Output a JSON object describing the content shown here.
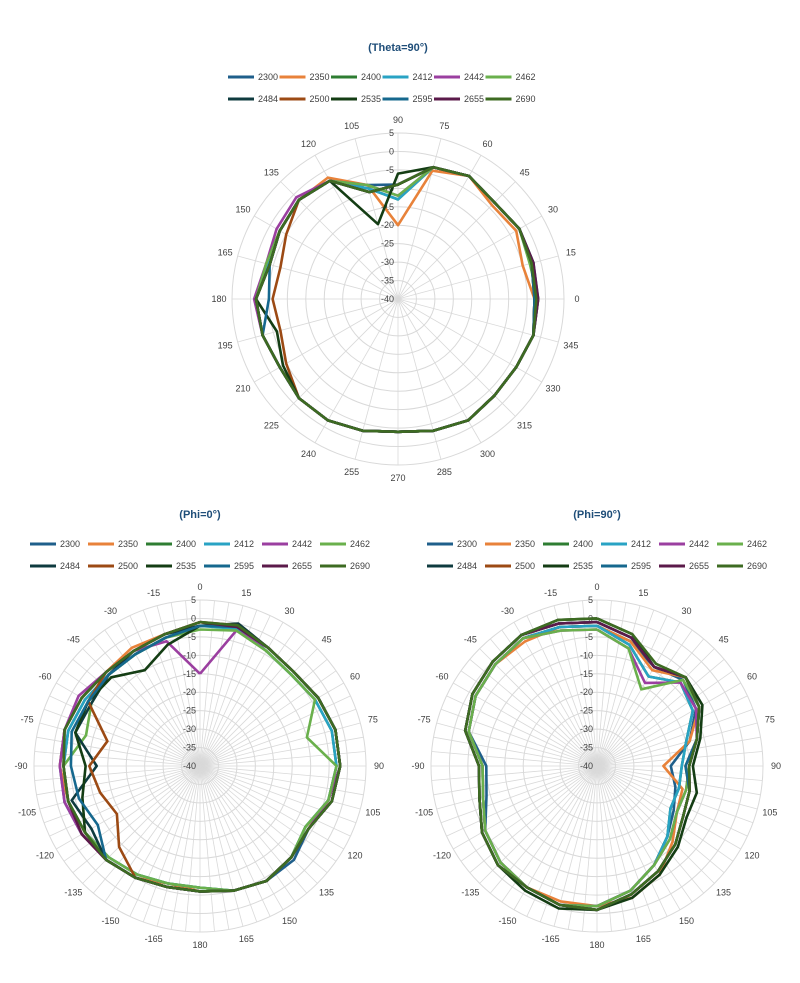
{
  "legend_names": [
    "2300",
    "2350",
    "2400",
    "2412",
    "2442",
    "2462",
    "2484",
    "2500",
    "2535",
    "2595",
    "2655",
    "2690"
  ],
  "legend_colors": [
    "#1f5f8b",
    "#e8823a",
    "#2e7d32",
    "#29a3c4",
    "#9b3fa0",
    "#6ab04c",
    "#0f3b3f",
    "#9c4a14",
    "#143d14",
    "#16688e",
    "#5b1a4a",
    "#3d6b22"
  ],
  "chart_data": [
    {
      "type": "radar",
      "title": "(Theta=90°)",
      "radial_ticks": [
        "5",
        "0",
        "-5",
        "-10",
        "-15",
        "-20",
        "-25",
        "-30",
        "-35",
        "-40"
      ],
      "rlim": [
        -40,
        5
      ],
      "angle_labels": [
        "0",
        "15",
        "30",
        "45",
        "60",
        "75",
        "90",
        "105",
        "120",
        "135",
        "150",
        "165",
        "180",
        "195",
        "210",
        "225",
        "240",
        "255",
        "270",
        "285",
        "300",
        "315",
        "330",
        "345"
      ],
      "series": [
        {
          "name": "2300",
          "values": [
            -2,
            -2.5,
            -2,
            -3,
            -1.5,
            -3,
            -9,
            -8,
            -3,
            -2,
            -3,
            -4,
            -1.5,
            -2,
            -3,
            -2,
            -2,
            -3,
            -4,
            -3,
            -2,
            -3,
            -3,
            -2
          ]
        },
        {
          "name": "2350",
          "values": [
            -3,
            -5,
            -3,
            -4,
            -1.5,
            -4,
            -20,
            -8,
            -2,
            -2,
            -3,
            -3,
            -1.5,
            -2,
            -3,
            -2,
            -2,
            -3,
            -4,
            -3,
            -2,
            -3,
            -3,
            -2
          ]
        },
        {
          "name": "2400",
          "values": [
            -2.5,
            -2.5,
            -2,
            -3,
            -1.5,
            -3,
            -13,
            -9,
            -3,
            -2,
            -3,
            -3.5,
            -1.5,
            -2,
            -3,
            -2,
            -2,
            -3,
            -4,
            -3,
            -2,
            -3,
            -3,
            -2
          ]
        },
        {
          "name": "2412",
          "values": [
            -2,
            -2,
            -2,
            -3,
            -1.5,
            -3,
            -13,
            -9,
            -3,
            -2,
            -3,
            -3.5,
            -1.5,
            -2,
            -3,
            -2,
            -2,
            -3,
            -4,
            -3,
            -2,
            -3,
            -3,
            -2
          ]
        },
        {
          "name": "2442",
          "values": [
            -2.5,
            -2.5,
            -2,
            -3,
            -1.5,
            -3,
            -12,
            -8,
            -3,
            -1,
            -2,
            -3,
            -1,
            -2,
            -3,
            -2,
            -2,
            -3,
            -4,
            -3,
            -2,
            -3,
            -3,
            -2
          ]
        },
        {
          "name": "2462",
          "values": [
            -2,
            -3,
            -2,
            -3,
            -1.5,
            -3,
            -12,
            -8,
            -3,
            -2,
            -3,
            -3,
            -1.5,
            -2,
            -3,
            -2,
            -2,
            -3,
            -4,
            -3,
            -2,
            -3,
            -3,
            -2
          ]
        },
        {
          "name": "2484",
          "values": [
            -3,
            -2,
            -2,
            -3,
            -1.5,
            -3,
            -9,
            -10,
            -3,
            -2,
            -3,
            -4,
            -1.5,
            -2,
            -3,
            -2,
            -2,
            -3,
            -4,
            -3,
            -2,
            -3,
            -3,
            -2
          ]
        },
        {
          "name": "2500",
          "values": [
            -3,
            -2.5,
            -2,
            -3,
            -1.5,
            -3,
            -9,
            -10,
            -3,
            -2,
            -5,
            -7,
            -6,
            -7,
            -5,
            -2,
            -2,
            -3,
            -4,
            -3,
            -2,
            -3,
            -3,
            -2
          ]
        },
        {
          "name": "2535",
          "values": [
            -3,
            -2.5,
            -2,
            -3,
            -1.5,
            -3,
            -6,
            -19,
            -3,
            -2,
            -3,
            -4,
            -1.5,
            -6,
            -4,
            -2,
            -2,
            -3,
            -4,
            -3,
            -2,
            -3,
            -3,
            -2
          ]
        },
        {
          "name": "2595",
          "values": [
            -3,
            -2.5,
            -2,
            -3,
            -1.5,
            -3,
            -9,
            -10,
            -3,
            -2,
            -3,
            -4,
            -5,
            -2,
            -3,
            -2,
            -2,
            -3,
            -4,
            -3,
            -2,
            -3,
            -3,
            -2
          ]
        },
        {
          "name": "2655",
          "values": [
            -2,
            -2,
            -2,
            -3,
            -1.5,
            -3,
            -9,
            -10,
            -3,
            -2,
            -3,
            -4,
            -1.5,
            -2,
            -3,
            -2,
            -2,
            -3,
            -4,
            -3,
            -2,
            -3,
            -3,
            -2
          ]
        },
        {
          "name": "2690",
          "values": [
            -2.5,
            -2.5,
            -2,
            -3,
            -1.5,
            -3,
            -9,
            -10,
            -3,
            -2,
            -3,
            -4,
            -1.5,
            -2,
            -3,
            -2,
            -2,
            -3,
            -4,
            -3,
            -2,
            -3,
            -3,
            -2
          ]
        }
      ]
    },
    {
      "type": "radar",
      "title": "(Phi=0°)",
      "radial_ticks": [
        "5",
        "0",
        "-5",
        "-10",
        "-15",
        "-20",
        "-25",
        "-30",
        "-35",
        "-40"
      ],
      "rlim": [
        -40,
        5
      ],
      "angle_labels": [
        "0",
        "15",
        "30",
        "45",
        "60",
        "75",
        "90",
        "105",
        "120",
        "135",
        "150",
        "165",
        "180",
        "-165",
        "-150",
        "-135",
        "-120",
        "-105",
        "-90",
        "-75",
        "-60",
        "-45",
        "-30",
        "-15"
      ],
      "series": [
        {
          "name": "2300",
          "values": [
            -2,
            -1,
            -3,
            -4,
            -3,
            -2,
            -2,
            -3,
            -6,
            -4,
            -4,
            -5,
            -6,
            -6,
            -5,
            -4,
            -3,
            -2,
            -2,
            -2,
            -3,
            -4,
            -4,
            -3
          ]
        },
        {
          "name": "2350",
          "values": [
            -1,
            -1.5,
            -3,
            -4,
            -3,
            -2,
            -2,
            -3,
            -7,
            -5,
            -4,
            -5,
            -6,
            -7,
            -5,
            -4,
            -3,
            -3,
            -2,
            -2,
            -3,
            -4,
            -3,
            -3
          ]
        },
        {
          "name": "2400",
          "values": [
            -2,
            -1,
            -4,
            -5,
            -4,
            -3,
            -3,
            -4,
            -7,
            -5,
            -4,
            -5,
            -7,
            -7,
            -6,
            -5,
            -4,
            -3,
            -3,
            -3,
            -4,
            -5,
            -5,
            -4
          ]
        },
        {
          "name": "2412",
          "values": [
            -2,
            -1.5,
            -4,
            -5,
            -4,
            -3,
            -3,
            -4,
            -7,
            -5,
            -4,
            -5,
            -7,
            -7,
            -6,
            -5,
            -4,
            -3,
            -3,
            -3,
            -4,
            -5,
            -5,
            -4
          ]
        },
        {
          "name": "2442",
          "values": [
            -15,
            -2,
            -3,
            -4,
            -3,
            -2,
            -2,
            -4,
            -6,
            -5,
            -4,
            -5,
            -6,
            -6,
            -5,
            -4,
            -3,
            -2,
            -2,
            -2,
            -2,
            -4,
            -4,
            -5
          ]
        },
        {
          "name": "2462",
          "values": [
            -3,
            -2,
            -4,
            -5,
            -4,
            -10,
            -3,
            -4,
            -7,
            -5,
            -4,
            -5,
            -7,
            -7,
            -6,
            -5,
            -4,
            -3,
            -3,
            -8,
            -6,
            -5,
            -5,
            -4
          ]
        },
        {
          "name": "2484",
          "values": [
            -2,
            0,
            -3,
            -4,
            -3,
            -2,
            -2,
            -3,
            -6,
            -5,
            -4,
            -5,
            -6,
            -6,
            -5,
            -4,
            -6,
            -4,
            -12,
            -5,
            -6,
            -5,
            -4,
            -3
          ]
        },
        {
          "name": "2500",
          "values": [
            -1,
            -0.5,
            -3,
            -4,
            -3,
            -2,
            -2,
            -3,
            -6,
            -5,
            -4,
            -5,
            -6,
            -6,
            -5,
            -9,
            -14,
            -12,
            -10,
            -14,
            -5,
            -4,
            -4,
            -3
          ]
        },
        {
          "name": "2535",
          "values": [
            -2,
            -0.5,
            -3,
            -4,
            -3,
            -2,
            -2,
            -3,
            -6,
            -5,
            -4,
            -5,
            -6,
            -6,
            -5,
            -4,
            -4,
            -7,
            -9,
            -5,
            -5,
            -6,
            -10,
            -6
          ]
        },
        {
          "name": "2595",
          "values": [
            -2,
            -1,
            -3,
            -4,
            -3,
            -2,
            -2,
            -3,
            -6,
            -5,
            -4,
            -5,
            -6,
            -6,
            -5,
            -4,
            -8,
            -6,
            -5,
            -4,
            -5,
            -5,
            -5,
            -4
          ]
        },
        {
          "name": "2655",
          "values": [
            -1,
            -1,
            -3,
            -4,
            -3,
            -2,
            -2,
            -3,
            -6,
            -5,
            -4,
            -5,
            -6,
            -6,
            -5,
            -4,
            -3,
            -3,
            -3,
            -2,
            -3,
            -4,
            -4,
            -3
          ]
        },
        {
          "name": "2690",
          "values": [
            -1,
            -0.5,
            -3,
            -4,
            -3,
            -2,
            -2,
            -3,
            -6,
            -5,
            -4,
            -5,
            -6,
            -6,
            -5,
            -4,
            -4,
            -3,
            -3,
            -2,
            -3,
            -4,
            -4,
            -3
          ]
        }
      ]
    },
    {
      "type": "radar",
      "title": "(Phi=90°)",
      "radial_ticks": [
        "5",
        "0",
        "-5",
        "-10",
        "-15",
        "-20",
        "-25",
        "-30",
        "-35",
        "-40"
      ],
      "rlim": [
        -40,
        5
      ],
      "angle_labels": [
        "0",
        "15",
        "30",
        "45",
        "60",
        "75",
        "90",
        "105",
        "120",
        "135",
        "150",
        "165",
        "180",
        "-165",
        "-150",
        "-135",
        "-120",
        "-105",
        "-90",
        "-75",
        "-60",
        "-45",
        "-30",
        "-15"
      ],
      "series": [
        {
          "name": "2300",
          "values": [
            -2,
            -5,
            -9,
            -7,
            -9,
            -14,
            -20,
            -18,
            -16,
            -13,
            -9,
            -5,
            -2,
            -1,
            -2,
            -3,
            -5,
            -9,
            -10,
            -4,
            -2,
            -1,
            0,
            -1
          ]
        },
        {
          "name": "2350",
          "values": [
            -2,
            -5,
            -10,
            -6,
            -8,
            -14,
            -22,
            -16,
            -15,
            -11,
            -6,
            -3,
            -2,
            -2,
            -2,
            -3,
            -5,
            -8,
            -9,
            -4,
            -2,
            -1,
            -1,
            -1
          ]
        },
        {
          "name": "2400",
          "values": [
            -2,
            -6,
            -12,
            -8,
            -10,
            -15,
            -17,
            -17,
            -17,
            -13,
            -9,
            -5,
            -2,
            -1,
            -2,
            -3,
            -5,
            -8,
            -9,
            -4,
            -2,
            -1,
            0,
            -1
          ]
        },
        {
          "name": "2412",
          "values": [
            -2,
            -6,
            -12,
            -8,
            -10,
            -15,
            -17,
            -17,
            -17,
            -13,
            -9,
            -5,
            -2,
            -1,
            -2,
            -3,
            -5,
            -8,
            -9,
            -4,
            -2,
            -1,
            0,
            -1
          ]
        },
        {
          "name": "2442",
          "values": [
            -3,
            -7,
            -14,
            -8,
            -9,
            -12,
            -15,
            -15,
            -15,
            -12,
            -9,
            -5,
            -2,
            -1,
            -2,
            -3,
            -5,
            -8,
            -9,
            -4,
            -2,
            -1,
            0,
            -2
          ]
        },
        {
          "name": "2462",
          "values": [
            -3,
            -7,
            -16,
            -7,
            -8,
            -12,
            -15,
            -15,
            -15,
            -12,
            -9,
            -5,
            -2,
            -1,
            -2,
            -3,
            -5,
            -8,
            -9,
            -4,
            -2,
            -1,
            0,
            -2
          ]
        },
        {
          "name": "2484",
          "values": [
            -1,
            -4,
            -9,
            -6,
            -8,
            -12,
            -15,
            -14,
            -13,
            -10,
            -7,
            -4,
            -1,
            -1,
            -2,
            -2,
            -4,
            -7,
            -8,
            -3,
            -1,
            0,
            1,
            0
          ]
        },
        {
          "name": "2500",
          "values": [
            -1,
            -4,
            -9,
            -6,
            -8,
            -12,
            -16,
            -14,
            -13,
            -10,
            -7,
            -4,
            -1,
            -1,
            -2,
            -2,
            -4,
            -7,
            -8,
            -3,
            -1,
            0,
            1,
            0
          ]
        },
        {
          "name": "2535",
          "values": [
            0,
            -3,
            -9,
            -6,
            -7,
            -11,
            -14,
            -12,
            -12,
            -9,
            -6,
            -3,
            -1,
            0,
            -1,
            -2,
            -4,
            -7,
            -8,
            -3,
            -1,
            0,
            1,
            1
          ]
        },
        {
          "name": "2595",
          "values": [
            -1,
            -4,
            -9,
            -6,
            -8,
            -12,
            -16,
            -14,
            -13,
            -10,
            -7,
            -4,
            -1,
            -1,
            -2,
            -2,
            -4,
            -7,
            -8,
            -3,
            -1,
            0,
            1,
            0
          ]
        },
        {
          "name": "2655",
          "values": [
            -1,
            -4,
            -9,
            -6,
            -8,
            -12,
            -15,
            -14,
            -13,
            -10,
            -7,
            -4,
            -1,
            -1,
            -2,
            -2,
            -4,
            -7,
            -8,
            -3,
            -1,
            0,
            1,
            0
          ]
        },
        {
          "name": "2690",
          "values": [
            0,
            -3,
            -8,
            -6,
            -8,
            -12,
            -15,
            -14,
            -13,
            -10,
            -7,
            -4,
            -1,
            -1,
            -2,
            -2,
            -4,
            -7,
            -8,
            -3,
            -1,
            0,
            1,
            1
          ]
        }
      ]
    }
  ]
}
